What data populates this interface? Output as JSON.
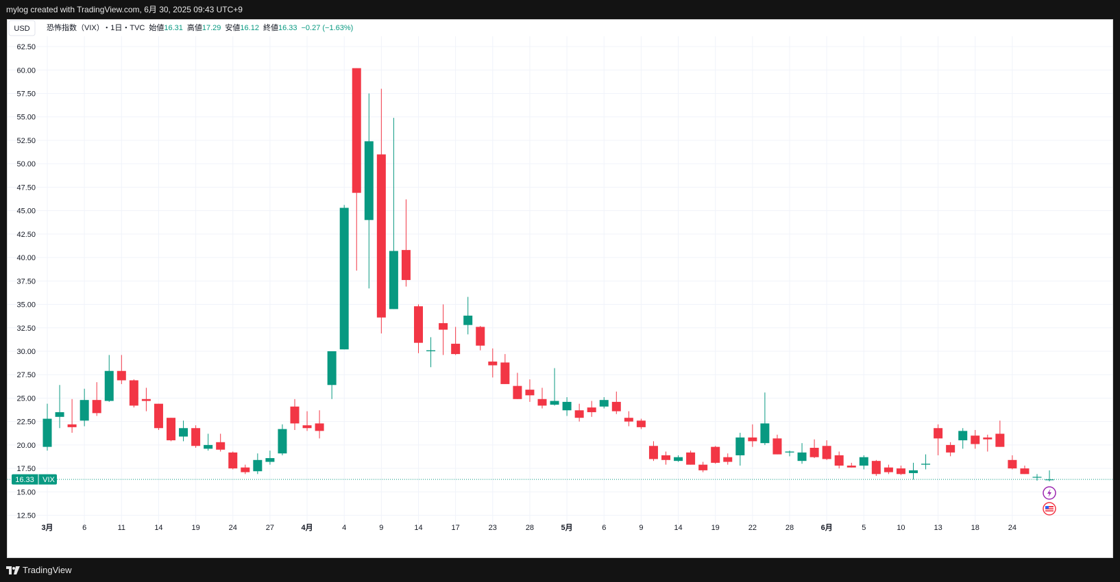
{
  "header": {
    "credit": "mylog created with TradingView.com, 6月 30, 2025 09:43 UTC+9"
  },
  "footer": {
    "brand": "TradingView",
    "brand_icon": "tradingview-logo-icon"
  },
  "legend": {
    "currency": "USD",
    "symbol": "恐怖指数（VIX）",
    "interval": "・1日・TVC",
    "open_label": "始値",
    "open": "16.31",
    "high_label": "高値",
    "high": "17.29",
    "low_label": "安値",
    "low": "16.12",
    "close_label": "終値",
    "close": "16.33",
    "change": "−0.27 (−1.63%)"
  },
  "price_tag": {
    "value": "16.33",
    "symbol": "VIX"
  },
  "colors": {
    "up": "#089981",
    "down": "#f23645",
    "grid": "#f0f3fa",
    "axis_text": "#131722"
  },
  "icons": [
    "flash-icon",
    "us-flag-icon"
  ],
  "chart_data": {
    "type": "candlestick",
    "title": "恐怖指数（VIX）",
    "ylabel": "USD",
    "ylim": [
      11.3,
      63.6
    ],
    "y_ticks": [
      "12.50",
      "15.00",
      "17.50",
      "20.00",
      "22.50",
      "25.00",
      "27.50",
      "30.00",
      "32.50",
      "35.00",
      "37.50",
      "40.00",
      "42.50",
      "45.00",
      "47.50",
      "50.00",
      "52.50",
      "55.00",
      "57.50",
      "60.00",
      "62.50"
    ],
    "x_ticks": [
      {
        "label": "3月",
        "index": 0,
        "bold": true
      },
      {
        "label": "6",
        "index": 3
      },
      {
        "label": "11",
        "index": 6
      },
      {
        "label": "14",
        "index": 9
      },
      {
        "label": "19",
        "index": 12
      },
      {
        "label": "24",
        "index": 15
      },
      {
        "label": "27",
        "index": 18
      },
      {
        "label": "4月",
        "index": 21,
        "bold": true
      },
      {
        "label": "4",
        "index": 24
      },
      {
        "label": "9",
        "index": 27
      },
      {
        "label": "14",
        "index": 30
      },
      {
        "label": "17",
        "index": 33
      },
      {
        "label": "23",
        "index": 36
      },
      {
        "label": "28",
        "index": 39
      },
      {
        "label": "5月",
        "index": 42,
        "bold": true
      },
      {
        "label": "6",
        "index": 45
      },
      {
        "label": "9",
        "index": 48
      },
      {
        "label": "14",
        "index": 51
      },
      {
        "label": "19",
        "index": 54
      },
      {
        "label": "22",
        "index": 57
      },
      {
        "label": "28",
        "index": 60
      },
      {
        "label": "6月",
        "index": 63,
        "bold": true
      },
      {
        "label": "5",
        "index": 66
      },
      {
        "label": "10",
        "index": 69
      },
      {
        "label": "13",
        "index": 72
      },
      {
        "label": "18",
        "index": 75
      },
      {
        "label": "24",
        "index": 78
      }
    ],
    "last_close": 16.33,
    "candles": [
      {
        "o": 19.8,
        "h": 24.4,
        "l": 19.4,
        "c": 22.8
      },
      {
        "o": 23.0,
        "h": 26.4,
        "l": 21.8,
        "c": 23.5
      },
      {
        "o": 22.2,
        "h": 24.9,
        "l": 21.3,
        "c": 21.9
      },
      {
        "o": 22.6,
        "h": 26.0,
        "l": 22.0,
        "c": 24.8
      },
      {
        "o": 24.8,
        "h": 26.7,
        "l": 23.1,
        "c": 23.4
      },
      {
        "o": 24.7,
        "h": 29.6,
        "l": 24.6,
        "c": 27.9
      },
      {
        "o": 27.9,
        "h": 29.6,
        "l": 26.5,
        "c": 26.9
      },
      {
        "o": 26.9,
        "h": 27.0,
        "l": 24.0,
        "c": 24.2
      },
      {
        "o": 24.9,
        "h": 26.1,
        "l": 23.6,
        "c": 24.7
      },
      {
        "o": 24.4,
        "h": 24.4,
        "l": 21.6,
        "c": 21.8
      },
      {
        "o": 22.9,
        "h": 22.9,
        "l": 20.4,
        "c": 20.5
      },
      {
        "o": 20.9,
        "h": 22.6,
        "l": 20.4,
        "c": 21.8
      },
      {
        "o": 21.8,
        "h": 22.1,
        "l": 19.7,
        "c": 19.9
      },
      {
        "o": 19.6,
        "h": 21.2,
        "l": 19.4,
        "c": 20.0
      },
      {
        "o": 20.3,
        "h": 21.2,
        "l": 19.3,
        "c": 19.5
      },
      {
        "o": 19.2,
        "h": 19.3,
        "l": 17.4,
        "c": 17.5
      },
      {
        "o": 17.6,
        "h": 17.9,
        "l": 16.9,
        "c": 17.1
      },
      {
        "o": 17.2,
        "h": 19.1,
        "l": 16.9,
        "c": 18.4
      },
      {
        "o": 18.2,
        "h": 19.4,
        "l": 17.9,
        "c": 18.6
      },
      {
        "o": 19.1,
        "h": 22.2,
        "l": 18.9,
        "c": 21.7
      },
      {
        "o": 24.1,
        "h": 24.9,
        "l": 21.6,
        "c": 22.3
      },
      {
        "o": 22.1,
        "h": 23.6,
        "l": 21.5,
        "c": 21.8
      },
      {
        "o": 22.3,
        "h": 23.7,
        "l": 20.7,
        "c": 21.5
      },
      {
        "o": 26.4,
        "h": 30.0,
        "l": 24.9,
        "c": 30.0
      },
      {
        "o": 30.2,
        "h": 45.6,
        "l": 30.2,
        "c": 45.3
      },
      {
        "o": 60.2,
        "h": 60.2,
        "l": 38.6,
        "c": 46.9
      },
      {
        "o": 44.0,
        "h": 57.5,
        "l": 36.7,
        "c": 52.4
      },
      {
        "o": 51.0,
        "h": 58.0,
        "l": 31.9,
        "c": 33.6
      },
      {
        "o": 34.5,
        "h": 54.9,
        "l": 34.5,
        "c": 40.7
      },
      {
        "o": 40.8,
        "h": 46.2,
        "l": 36.9,
        "c": 37.6
      },
      {
        "o": 34.8,
        "h": 35.0,
        "l": 29.8,
        "c": 30.9
      },
      {
        "o": 30.0,
        "h": 31.5,
        "l": 28.3,
        "c": 30.1
      },
      {
        "o": 33.0,
        "h": 35.0,
        "l": 29.6,
        "c": 32.3
      },
      {
        "o": 30.8,
        "h": 32.6,
        "l": 29.6,
        "c": 29.7
      },
      {
        "o": 32.8,
        "h": 35.8,
        "l": 31.8,
        "c": 33.8
      },
      {
        "o": 32.6,
        "h": 32.7,
        "l": 30.1,
        "c": 30.6
      },
      {
        "o": 28.9,
        "h": 30.3,
        "l": 27.2,
        "c": 28.5
      },
      {
        "o": 28.8,
        "h": 29.7,
        "l": 26.5,
        "c": 26.5
      },
      {
        "o": 26.3,
        "h": 27.7,
        "l": 24.9,
        "c": 24.9
      },
      {
        "o": 25.9,
        "h": 27.0,
        "l": 24.6,
        "c": 25.3
      },
      {
        "o": 24.9,
        "h": 26.1,
        "l": 23.9,
        "c": 24.2
      },
      {
        "o": 24.3,
        "h": 28.2,
        "l": 24.2,
        "c": 24.7
      },
      {
        "o": 23.7,
        "h": 25.1,
        "l": 23.1,
        "c": 24.6
      },
      {
        "o": 23.7,
        "h": 24.4,
        "l": 22.5,
        "c": 22.9
      },
      {
        "o": 24.0,
        "h": 24.7,
        "l": 23.0,
        "c": 23.5
      },
      {
        "o": 24.1,
        "h": 25.1,
        "l": 23.9,
        "c": 24.8
      },
      {
        "o": 24.6,
        "h": 25.7,
        "l": 23.3,
        "c": 23.6
      },
      {
        "o": 22.9,
        "h": 23.6,
        "l": 22.0,
        "c": 22.5
      },
      {
        "o": 22.6,
        "h": 22.8,
        "l": 21.7,
        "c": 21.9
      },
      {
        "o": 19.9,
        "h": 20.4,
        "l": 18.3,
        "c": 18.5
      },
      {
        "o": 18.9,
        "h": 19.3,
        "l": 17.9,
        "c": 18.4
      },
      {
        "o": 18.3,
        "h": 18.9,
        "l": 18.2,
        "c": 18.7
      },
      {
        "o": 19.2,
        "h": 19.4,
        "l": 17.9,
        "c": 17.9
      },
      {
        "o": 17.9,
        "h": 18.2,
        "l": 17.1,
        "c": 17.3
      },
      {
        "o": 19.8,
        "h": 19.9,
        "l": 18.0,
        "c": 18.1
      },
      {
        "o": 18.7,
        "h": 19.1,
        "l": 17.9,
        "c": 18.2
      },
      {
        "o": 18.9,
        "h": 21.3,
        "l": 17.8,
        "c": 20.8
      },
      {
        "o": 20.8,
        "h": 22.2,
        "l": 19.8,
        "c": 20.4
      },
      {
        "o": 20.2,
        "h": 25.6,
        "l": 20.0,
        "c": 22.3
      },
      {
        "o": 20.7,
        "h": 21.1,
        "l": 19.0,
        "c": 19.0
      },
      {
        "o": 19.2,
        "h": 19.4,
        "l": 18.8,
        "c": 19.3
      },
      {
        "o": 18.3,
        "h": 20.2,
        "l": 18.0,
        "c": 19.2
      },
      {
        "o": 19.7,
        "h": 20.6,
        "l": 18.6,
        "c": 18.7
      },
      {
        "o": 19.9,
        "h": 20.5,
        "l": 18.4,
        "c": 18.5
      },
      {
        "o": 18.9,
        "h": 19.3,
        "l": 17.5,
        "c": 17.8
      },
      {
        "o": 17.8,
        "h": 18.1,
        "l": 17.6,
        "c": 17.6
      },
      {
        "o": 17.8,
        "h": 18.9,
        "l": 17.4,
        "c": 18.7
      },
      {
        "o": 18.3,
        "h": 18.4,
        "l": 16.7,
        "c": 16.9
      },
      {
        "o": 17.6,
        "h": 17.9,
        "l": 16.9,
        "c": 17.1
      },
      {
        "o": 17.5,
        "h": 17.8,
        "l": 16.8,
        "c": 16.9
      },
      {
        "o": 17.0,
        "h": 18.1,
        "l": 16.3,
        "c": 17.3
      },
      {
        "o": 17.9,
        "h": 19.0,
        "l": 17.4,
        "c": 18.0
      },
      {
        "o": 21.8,
        "h": 22.2,
        "l": 18.9,
        "c": 20.7
      },
      {
        "o": 20.0,
        "h": 20.3,
        "l": 18.8,
        "c": 19.2
      },
      {
        "o": 20.5,
        "h": 21.8,
        "l": 19.6,
        "c": 21.5
      },
      {
        "o": 21.0,
        "h": 21.6,
        "l": 19.6,
        "c": 20.1
      },
      {
        "o": 20.8,
        "h": 21.1,
        "l": 19.3,
        "c": 20.6
      },
      {
        "o": 21.2,
        "h": 22.6,
        "l": 19.8,
        "c": 19.8
      },
      {
        "o": 18.4,
        "h": 18.9,
        "l": 17.4,
        "c": 17.5
      },
      {
        "o": 17.5,
        "h": 17.8,
        "l": 16.9,
        "c": 16.9
      },
      {
        "o": 16.6,
        "h": 16.9,
        "l": 16.2,
        "c": 16.6
      },
      {
        "o": 16.31,
        "h": 17.29,
        "l": 16.12,
        "c": 16.33
      }
    ]
  }
}
